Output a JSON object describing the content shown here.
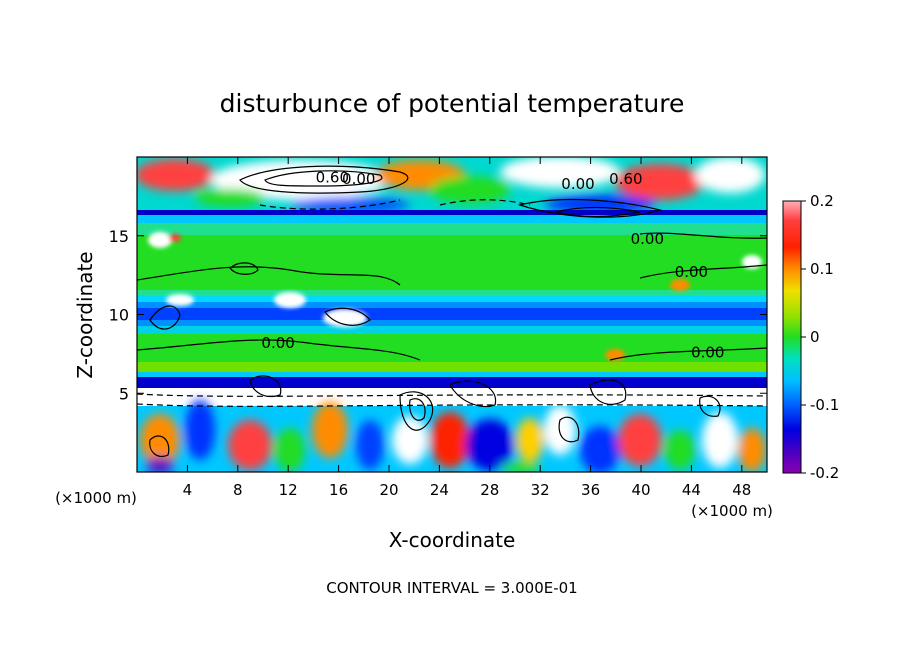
{
  "chart_data": {
    "type": "heatmap",
    "title": "disturbunce of potential temperature",
    "xlabel": "X-coordinate",
    "ylabel": "Z-coordinate",
    "x_unit": "(×1000 m)",
    "z_unit": "(×1000 m)",
    "xlim": [
      0,
      50
    ],
    "zlim": [
      0,
      20
    ],
    "x_ticks": [
      "4",
      "8",
      "12",
      "16",
      "20",
      "24",
      "28",
      "32",
      "36",
      "40",
      "44",
      "48"
    ],
    "z_ticks": [
      "5",
      "10",
      "15"
    ],
    "colorbar": {
      "range": [
        -0.2,
        0.2
      ],
      "ticks": [
        "0.2",
        "0.1",
        "0",
        "-0.1",
        "-0.2"
      ]
    },
    "contour_labels": [
      {
        "text": "0.60",
        "x": 15.5,
        "z": 18.7
      },
      {
        "text": "0.00",
        "x": 17.6,
        "z": 18.6
      },
      {
        "text": "0.00",
        "x": 35.0,
        "z": 18.3
      },
      {
        "text": "0.60",
        "x": 38.8,
        "z": 18.6
      },
      {
        "text": "0.00",
        "x": 40.5,
        "z": 14.8
      },
      {
        "text": "0.00",
        "x": 44.0,
        "z": 12.7
      },
      {
        "text": "0.00",
        "x": 11.2,
        "z": 8.2
      },
      {
        "text": "0.00",
        "x": 45.3,
        "z": 7.6
      }
    ],
    "footer": "CONTOUR INTERVAL = 3.000E-01"
  }
}
